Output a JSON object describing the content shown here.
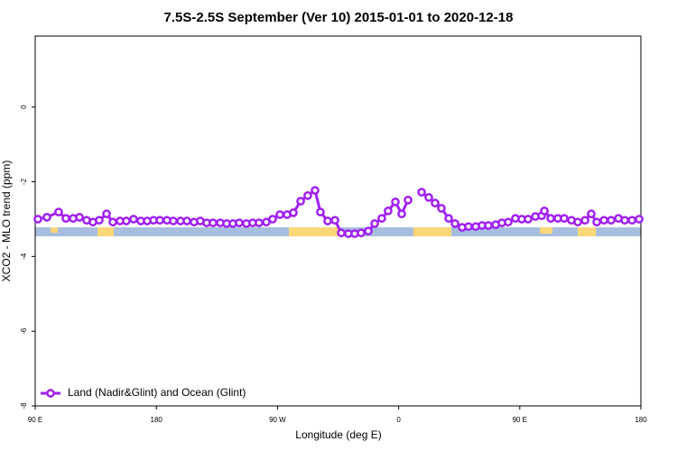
{
  "chart_data": {
    "type": "line",
    "title": "7.5S-2.5S September (Ver 10)   2015-01-01 to 2020-12-18",
    "x_label": "Longitude (deg E)",
    "y_label": "XCO2 - MLO trend (ppm)",
    "xlim": [
      90,
      540
    ],
    "xticks": [
      {
        "value": 90,
        "label": "90 E"
      },
      180,
      {
        "value": 270,
        "label": "90 W"
      },
      {
        "value": 360,
        "label": "0"
      },
      {
        "value": 450,
        "label": "90 E"
      },
      {
        "value": 540,
        "label": "180"
      }
    ],
    "ylim": [
      -8,
      1.9
    ],
    "yticks": [
      -8,
      -6,
      -4,
      -2,
      0
    ],
    "legend": "bottom-left",
    "x": [
      92,
      98.7,
      107.4,
      112.8,
      118.2,
      122.9,
      128.2,
      132.9,
      137.6,
      143,
      147.7,
      153,
      157.7,
      163.1,
      168.5,
      173.2,
      177.9,
      182.6,
      187.9,
      192.6,
      198,
      202.7,
      208,
      212.7,
      217.4,
      222.1,
      227.5,
      232.2,
      236.9,
      241.6,
      246.9,
      251.6,
      256.3,
      261.7,
      266.4,
      271.8,
      277.1,
      281.8,
      287.2,
      292.5,
      297.9,
      301.9,
      307.3,
      312.7,
      317.4,
      322.7,
      327.4,
      332.1,
      337.5,
      342.2,
      347.5,
      352.2,
      357.6,
      362.3,
      367,
      372,
      377.1,
      382.4,
      387.1,
      391.8,
      397.2,
      401.9,
      407.2,
      411.9,
      417.3,
      422,
      426.7,
      432.1,
      436.7,
      441.4,
      446.8,
      451.5,
      456.2,
      461.6,
      466.3,
      468.3,
      473,
      478.3,
      483,
      488.4,
      493.1,
      498.5,
      503.1,
      507.2,
      512.6,
      517.9,
      523.3,
      528,
      533.4,
      538.7
    ],
    "series": [
      {
        "name": "Land (Nadir&Glint) and Ocean (Glint)",
        "color": "#a020f0",
        "values": [
          -3.0,
          -2.95,
          -2.81,
          -2.98,
          -2.98,
          -2.95,
          -3.03,
          -3.08,
          -3.03,
          -2.86,
          -3.08,
          -3.05,
          -3.05,
          -3.0,
          -3.05,
          -3.05,
          -3.03,
          -3.03,
          -3.03,
          -3.05,
          -3.05,
          -3.05,
          -3.08,
          -3.05,
          -3.1,
          -3.1,
          -3.1,
          -3.12,
          -3.12,
          -3.1,
          -3.12,
          -3.1,
          -3.1,
          -3.08,
          -3.0,
          -2.88,
          -2.88,
          -2.83,
          -2.52,
          -2.37,
          -2.23,
          -2.81,
          -3.05,
          -3.03,
          -3.37,
          -3.39,
          -3.39,
          -3.37,
          -3.32,
          -3.12,
          -2.98,
          -2.78,
          -2.54,
          -2.86,
          -2.49,
          null,
          -2.28,
          -2.42,
          -2.57,
          -2.71,
          -2.98,
          -3.12,
          -3.22,
          -3.2,
          -3.2,
          -3.17,
          -3.17,
          -3.15,
          -3.1,
          -3.08,
          -2.98,
          -3.0,
          -3.0,
          -2.93,
          -2.91,
          -2.78,
          -2.98,
          -2.98,
          -2.98,
          -3.03,
          -3.08,
          -3.03,
          -2.86,
          -3.08,
          -3.03,
          -3.03,
          -2.98,
          -3.03,
          -3.03,
          -3.0
        ]
      }
    ]
  }
}
